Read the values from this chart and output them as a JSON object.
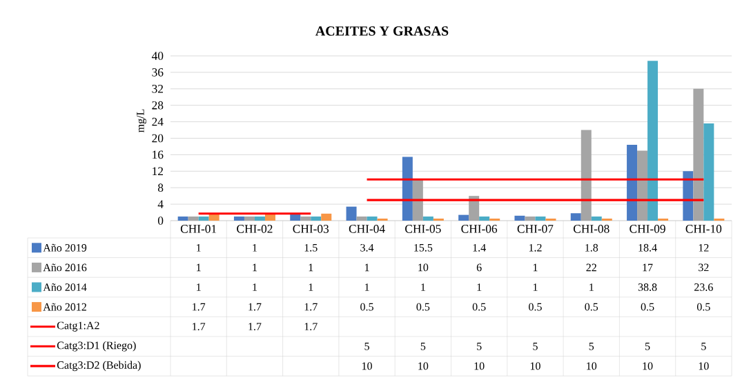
{
  "chart_data": {
    "type": "bar",
    "title": "ACEITES Y GRASAS",
    "ylabel": "mg/L",
    "categories": [
      "CHI-01",
      "CHI-02",
      "CHI-03",
      "CHI-04",
      "CHI-05",
      "CHI-06",
      "CHI-07",
      "CHI-08",
      "CHI-09",
      "CHI-10"
    ],
    "series": [
      {
        "name": "Año 2019",
        "color": "#4a7bc4",
        "values": [
          1,
          1,
          1.5,
          3.4,
          15.5,
          1.4,
          1.2,
          1.8,
          18.4,
          12
        ]
      },
      {
        "name": "Año 2016",
        "color": "#a5a5a5",
        "values": [
          1,
          1,
          1,
          1,
          10,
          6,
          1,
          22,
          17,
          32
        ]
      },
      {
        "name": "Año 2014",
        "color": "#4bacc6",
        "values": [
          1,
          1,
          1,
          1,
          1,
          1,
          1,
          1,
          38.8,
          23.6
        ]
      },
      {
        "name": "Año 2012",
        "color": "#f79646",
        "values": [
          1.7,
          1.7,
          1.7,
          0.5,
          0.5,
          0.5,
          0.5,
          0.5,
          0.5,
          0.5
        ]
      },
      {
        "name": "Catg1:A2",
        "type": "line",
        "color": "#ff0000",
        "values": [
          1.7,
          1.7,
          1.7,
          null,
          null,
          null,
          null,
          null,
          null,
          null
        ]
      },
      {
        "name": "Catg3:D1 (Riego)",
        "type": "line",
        "color": "#ff0000",
        "values": [
          null,
          null,
          null,
          5,
          5,
          5,
          5,
          5,
          5,
          5
        ]
      },
      {
        "name": "Catg3:D2 (Bebida)",
        "type": "line",
        "color": "#ff0000",
        "values": [
          null,
          null,
          null,
          10,
          10,
          10,
          10,
          10,
          10,
          10
        ]
      }
    ],
    "ylim": [
      0,
      40
    ],
    "yticks": [
      0,
      4,
      8,
      12,
      16,
      20,
      24,
      28,
      32,
      36,
      40
    ],
    "grid": "y",
    "legend": "bottom",
    "data_labels": true,
    "marker": "none",
    "line_style": "solid"
  }
}
